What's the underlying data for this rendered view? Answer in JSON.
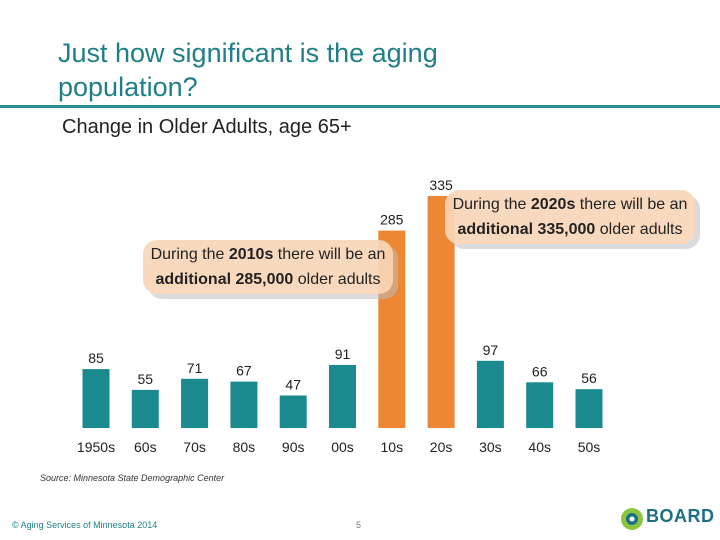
{
  "slide": {
    "title": "Just how significant is the aging population?",
    "subtitle": "Change in Older Adults, age 65+",
    "source": "Source: Minnesota State Demographic Center",
    "copyright": "© Aging Services of Minnesota 2014",
    "page_number": "5",
    "logo_text": "BOARD"
  },
  "callouts": {
    "c2010": {
      "pre": "During the ",
      "decade": "2010s",
      "mid": " there will be an ",
      "strong": "additional 285,000",
      "post": " older adults"
    },
    "c2020": {
      "pre": "During the ",
      "decade": "2020s",
      "mid": " there will be an ",
      "strong": "additional 335,000",
      "post": " older adults"
    }
  },
  "chart_data": {
    "type": "bar",
    "title": "",
    "xlabel": "",
    "ylabel": "",
    "ylim": [
      0,
      335
    ],
    "grid": false,
    "categories": [
      "1950s",
      "60s",
      "70s",
      "80s",
      "90s",
      "00s",
      "10s",
      "20s",
      "30s",
      "40s",
      "50s"
    ],
    "values": [
      85,
      55,
      71,
      67,
      47,
      91,
      285,
      335,
      97,
      66,
      56
    ],
    "highlight": [
      "10s",
      "20s"
    ],
    "colors": {
      "base": "#1a8a8e",
      "highlight": "#ee8733"
    }
  }
}
